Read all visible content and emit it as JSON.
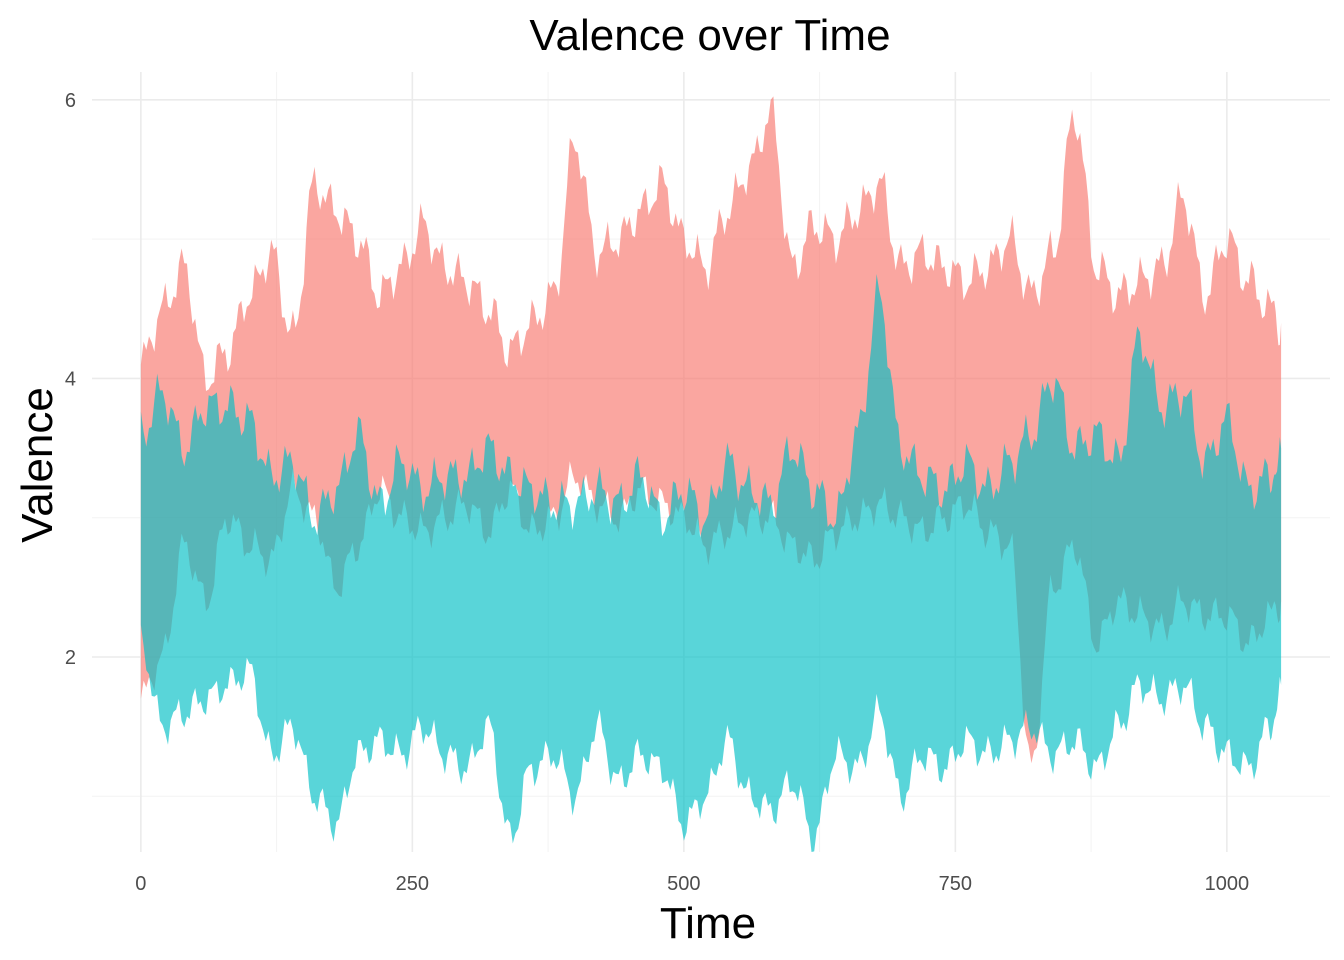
{
  "chart_data": {
    "type": "area",
    "title": "Valence over Time",
    "xlabel": "Time",
    "ylabel": "Valence",
    "xlim": [
      -45,
      1095
    ],
    "ylim": [
      0.6,
      6.2
    ],
    "x_ticks": [
      0,
      250,
      500,
      750,
      1000
    ],
    "y_ticks": [
      2,
      4,
      6
    ],
    "grid": true,
    "legend": "none",
    "series": [
      {
        "color": "#F8766D",
        "opacity": 0.65,
        "x": [
          0,
          20,
          40,
          60,
          80,
          100,
          120,
          140,
          160,
          180,
          200,
          220,
          240,
          260,
          280,
          300,
          320,
          340,
          360,
          380,
          400,
          420,
          440,
          460,
          480,
          500,
          520,
          540,
          560,
          580,
          600,
          620,
          640,
          660,
          680,
          700,
          720,
          740,
          760,
          780,
          800,
          820,
          840,
          860,
          880,
          900,
          920,
          940,
          960,
          980,
          1000,
          1020,
          1040,
          1050
        ],
        "upper": [
          4.1,
          4.5,
          4.8,
          4.0,
          4.2,
          4.6,
          4.9,
          4.3,
          5.4,
          5.2,
          5.0,
          4.6,
          4.8,
          5.1,
          4.8,
          4.7,
          4.5,
          4.2,
          4.4,
          4.6,
          5.7,
          4.9,
          5.0,
          5.2,
          5.4,
          5.0,
          4.8,
          5.2,
          5.5,
          5.9,
          4.8,
          5.1,
          5.0,
          5.2,
          5.4,
          4.8,
          4.9,
          4.8,
          4.7,
          4.8,
          5.0,
          4.6,
          4.9,
          5.9,
          4.8,
          4.6,
          4.7,
          4.8,
          5.3,
          4.6,
          5.0,
          4.7,
          4.5,
          4.4
        ],
        "lower": [
          1.7,
          2.0,
          2.8,
          2.4,
          3.0,
          2.8,
          2.7,
          3.2,
          3.0,
          2.5,
          2.8,
          3.2,
          3.0,
          2.9,
          3.0,
          3.1,
          2.9,
          3.2,
          2.9,
          3.0,
          3.3,
          3.1,
          3.0,
          3.2,
          3.1,
          3.0,
          2.8,
          2.9,
          3.0,
          3.0,
          2.8,
          2.7,
          2.9,
          3.0,
          3.1,
          3.0,
          2.9,
          3.0,
          3.1,
          2.9,
          2.8,
          1.2,
          2.5,
          2.8,
          2.1,
          2.4,
          2.3,
          2.2,
          2.4,
          2.3,
          2.3,
          2.1,
          2.3,
          2.4
        ]
      },
      {
        "color": "#00BFC4",
        "opacity": 0.65,
        "x": [
          0,
          20,
          40,
          60,
          80,
          100,
          120,
          140,
          160,
          180,
          200,
          220,
          240,
          260,
          280,
          300,
          320,
          340,
          360,
          380,
          400,
          420,
          440,
          460,
          480,
          500,
          520,
          540,
          560,
          580,
          600,
          620,
          640,
          660,
          680,
          700,
          720,
          740,
          760,
          780,
          800,
          820,
          840,
          860,
          880,
          900,
          920,
          940,
          960,
          980,
          1000,
          1020,
          1040,
          1050
        ],
        "upper": [
          3.6,
          3.9,
          3.5,
          3.8,
          3.8,
          3.7,
          3.3,
          3.4,
          3.0,
          3.2,
          3.6,
          3.1,
          3.4,
          3.2,
          3.3,
          3.3,
          3.5,
          3.3,
          3.2,
          3.1,
          3.1,
          3.2,
          3.1,
          3.3,
          3.0,
          3.2,
          3.0,
          3.4,
          3.2,
          3.1,
          3.5,
          3.2,
          3.0,
          3.6,
          4.6,
          3.5,
          3.3,
          3.2,
          3.4,
          3.2,
          3.4,
          3.6,
          4.0,
          3.5,
          3.6,
          3.4,
          4.3,
          3.8,
          3.9,
          3.4,
          3.7,
          3.2,
          3.3,
          3.5
        ],
        "lower": [
          2.1,
          1.5,
          1.6,
          1.7,
          1.8,
          1.9,
          1.3,
          1.5,
          1.0,
          0.8,
          1.3,
          1.4,
          1.3,
          1.5,
          1.3,
          1.2,
          1.5,
          0.7,
          1.2,
          1.3,
          1.0,
          1.5,
          1.1,
          1.3,
          1.2,
          0.8,
          1.0,
          1.4,
          1.0,
          0.9,
          1.1,
          0.7,
          1.3,
          1.2,
          1.6,
          1.0,
          1.3,
          1.2,
          1.4,
          1.3,
          1.4,
          1.5,
          1.3,
          1.4,
          1.2,
          1.5,
          1.8,
          1.7,
          1.8,
          1.5,
          1.3,
          1.2,
          1.5,
          1.8
        ]
      }
    ]
  }
}
